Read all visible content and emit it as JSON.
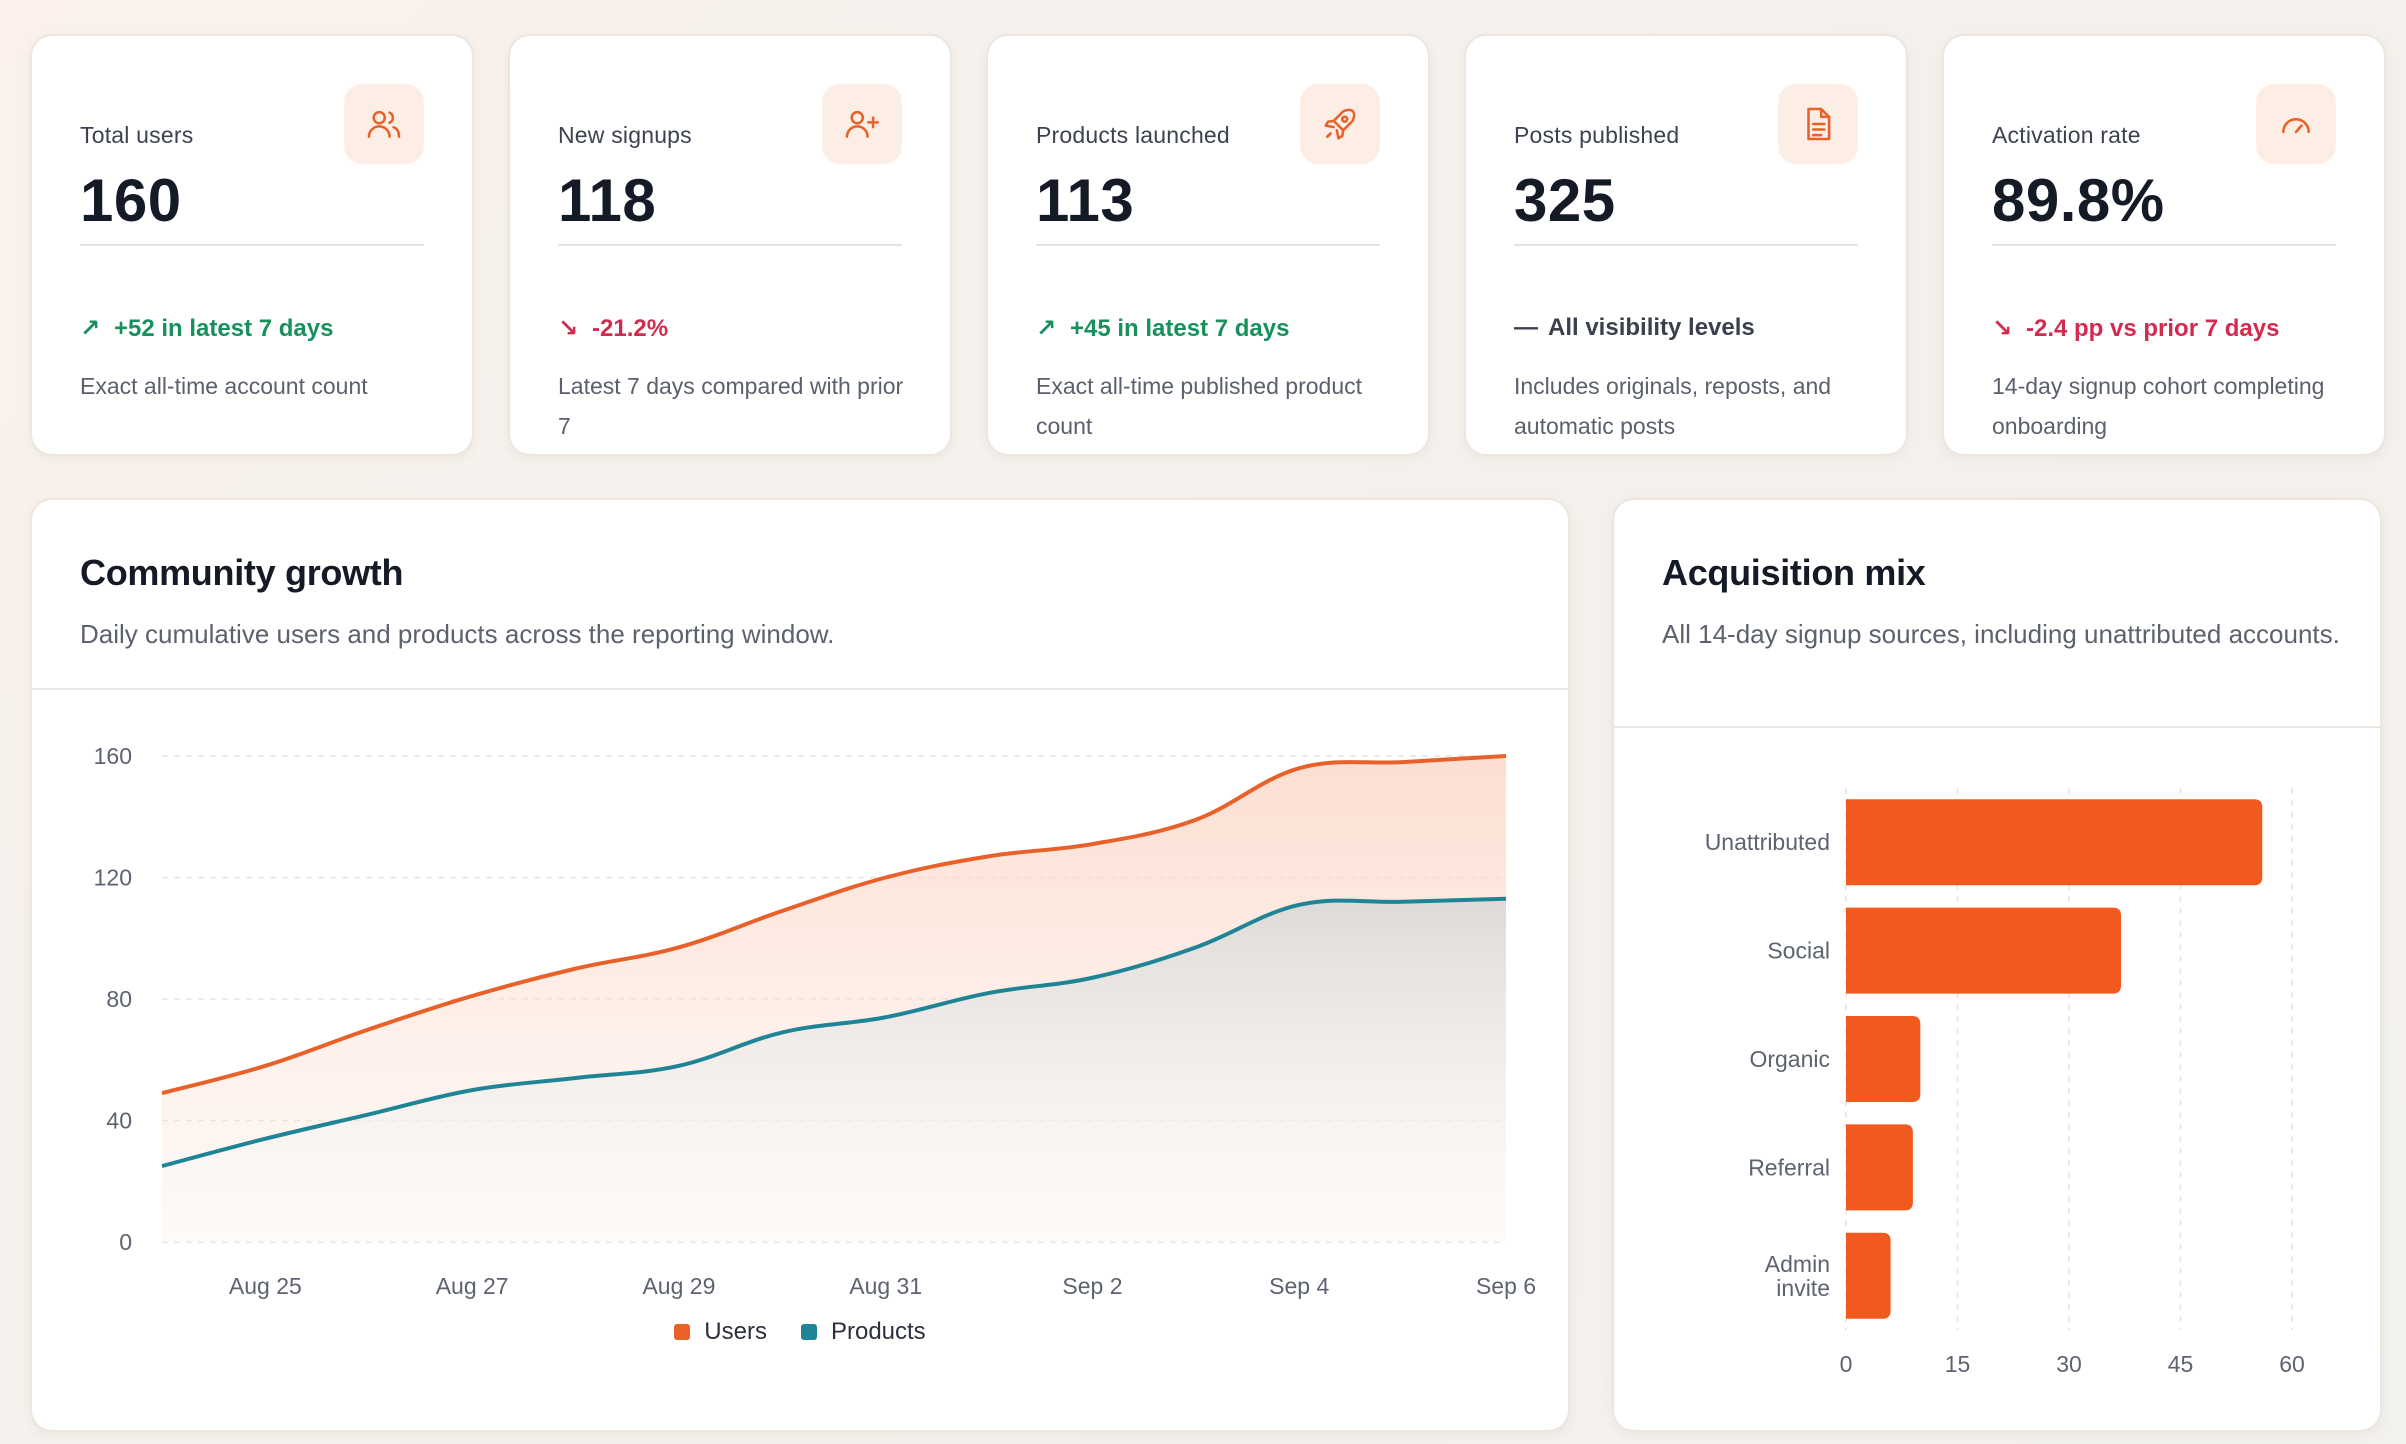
{
  "kpis": [
    {
      "title": "Total users",
      "value": "160",
      "icon": "users-icon",
      "delta": "+52 in latest 7 days",
      "trend": "up",
      "note": "Exact all-time account count"
    },
    {
      "title": "New signups",
      "value": "118",
      "icon": "user-plus-icon",
      "delta": "-21.2%",
      "trend": "down",
      "note": "Latest 7 days compared with prior 7"
    },
    {
      "title": "Products launched",
      "value": "113",
      "icon": "rocket-icon",
      "delta": "+45 in latest 7 days",
      "trend": "up",
      "note": "Exact all-time published product count"
    },
    {
      "title": "Posts published",
      "value": "325",
      "icon": "document-icon",
      "delta": "All visibility levels",
      "trend": "flat",
      "note": "Includes originals, reposts, and automatic posts"
    },
    {
      "title": "Activation rate",
      "value": "89.8%",
      "icon": "gauge-icon",
      "delta": "-2.4 pp vs prior 7 days",
      "trend": "down",
      "note": "14-day signup cohort completing onboarding"
    }
  ],
  "growth": {
    "title": "Community growth",
    "subtitle": "Daily cumulative users and products across the reporting window."
  },
  "mix": {
    "title": "Acquisition mix",
    "subtitle": "All 14-day signup sources, including unattributed accounts."
  },
  "colors": {
    "accent": "#f05a1e",
    "users": "#e8612a",
    "products": "#1f8596",
    "up": "#17915c",
    "down": "#d32a4f"
  },
  "chart_data": [
    {
      "type": "area",
      "x": [
        "Aug 24",
        "Aug 25",
        "Aug 26",
        "Aug 27",
        "Aug 28",
        "Aug 29",
        "Aug 30",
        "Aug 31",
        "Sep 1",
        "Sep 2",
        "Sep 3",
        "Sep 4",
        "Sep 5",
        "Sep 6"
      ],
      "xticks": [
        "Aug 25",
        "Aug 27",
        "Aug 29",
        "Aug 31",
        "Sep 2",
        "Sep 4",
        "Sep 6"
      ],
      "series": [
        {
          "name": "Users",
          "values": [
            49,
            58,
            70,
            81,
            90,
            97,
            109,
            120,
            127,
            131,
            139,
            156,
            158,
            160
          ]
        },
        {
          "name": "Products",
          "values": [
            25,
            34,
            42,
            50,
            54,
            58,
            69,
            74,
            82,
            87,
            97,
            111,
            112,
            113
          ]
        }
      ],
      "ylim": [
        0,
        160
      ],
      "yticks": [
        0,
        40,
        80,
        120,
        160
      ],
      "grid": true,
      "legend": "bottom-center"
    },
    {
      "type": "bar",
      "orientation": "horizontal",
      "categories": [
        "Unattributed",
        "Social",
        "Organic",
        "Referral",
        "Admin invite"
      ],
      "values": [
        56,
        37,
        10,
        9,
        6
      ],
      "xlim": [
        0,
        60
      ],
      "xticks": [
        0,
        15,
        30,
        45,
        60
      ],
      "grid": true
    }
  ]
}
